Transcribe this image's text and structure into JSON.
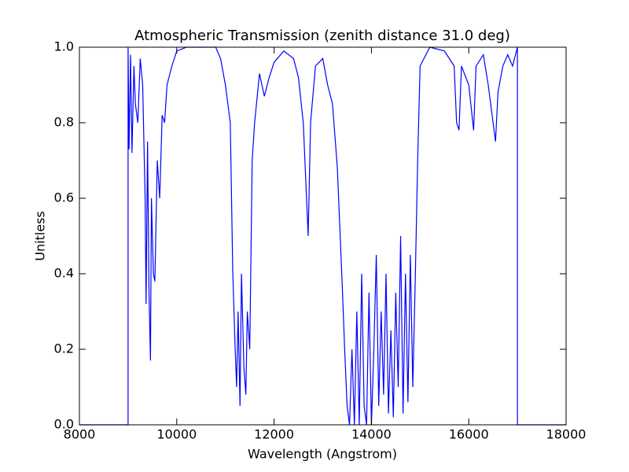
{
  "chart_data": {
    "type": "line",
    "title": "Atmospheric Transmission (zenith distance 31.0 deg)",
    "x_label": "Wavelength (Angstrom)",
    "y_label": "Unitless",
    "color": "#0000ff",
    "x": [
      8000,
      9000,
      9000,
      9020,
      9050,
      9080,
      9120,
      9150,
      9200,
      9250,
      9300,
      9350,
      9370,
      9400,
      9430,
      9460,
      9480,
      9520,
      9550,
      9600,
      9650,
      9700,
      9750,
      9800,
      9900,
      10000,
      10200,
      10500,
      10800,
      10900,
      11000,
      11100,
      11150,
      11200,
      11230,
      11260,
      11300,
      11330,
      11380,
      11420,
      11450,
      11500,
      11550,
      11600,
      11700,
      11800,
      11900,
      12000,
      12200,
      12400,
      12500,
      12600,
      12650,
      12700,
      12750,
      12850,
      13000,
      13100,
      13200,
      13300,
      13400,
      13450,
      13500,
      13550,
      13600,
      13650,
      13700,
      13750,
      13800,
      13850,
      13900,
      13950,
      14000,
      14050,
      14100,
      14150,
      14200,
      14250,
      14300,
      14350,
      14400,
      14450,
      14500,
      14550,
      14600,
      14650,
      14700,
      14750,
      14800,
      14850,
      14900,
      14950,
      15000,
      15200,
      15500,
      15700,
      15750,
      15800,
      15850,
      16000,
      16100,
      16150,
      16300,
      16400,
      16500,
      16550,
      16600,
      16700,
      16800,
      16900,
      17000,
      17000,
      18000
    ],
    "values": [
      0,
      0,
      1.0,
      0.73,
      0.98,
      0.72,
      0.95,
      0.85,
      0.8,
      0.97,
      0.9,
      0.6,
      0.32,
      0.75,
      0.35,
      0.17,
      0.6,
      0.4,
      0.38,
      0.7,
      0.6,
      0.82,
      0.8,
      0.9,
      0.95,
      0.99,
      1.0,
      1.0,
      1.0,
      0.97,
      0.9,
      0.8,
      0.41,
      0.2,
      0.1,
      0.3,
      0.05,
      0.4,
      0.15,
      0.08,
      0.3,
      0.2,
      0.7,
      0.8,
      0.93,
      0.87,
      0.92,
      0.96,
      0.99,
      0.97,
      0.92,
      0.8,
      0.65,
      0.5,
      0.8,
      0.95,
      0.97,
      0.9,
      0.85,
      0.68,
      0.37,
      0.2,
      0.05,
      0.0,
      0.2,
      0.0,
      0.3,
      0.0,
      0.4,
      0.05,
      0.0,
      0.35,
      0.0,
      0.2,
      0.45,
      0.05,
      0.3,
      0.08,
      0.4,
      0.03,
      0.25,
      0.02,
      0.35,
      0.1,
      0.5,
      0.03,
      0.4,
      0.06,
      0.45,
      0.1,
      0.38,
      0.7,
      0.95,
      1.0,
      0.99,
      0.95,
      0.8,
      0.78,
      0.95,
      0.9,
      0.78,
      0.95,
      0.98,
      0.9,
      0.8,
      0.75,
      0.88,
      0.95,
      0.98,
      0.95,
      1.0,
      0,
      0
    ],
    "xlim": [
      8000,
      18000
    ],
    "ylim": [
      0,
      1
    ],
    "xticks": [
      8000,
      10000,
      12000,
      14000,
      16000,
      18000
    ],
    "yticks": [
      {
        "value": 0,
        "label": "0.0"
      },
      0.2,
      0.4,
      0.6,
      0.8,
      {
        "value": 1,
        "label": "1.0"
      }
    ]
  }
}
